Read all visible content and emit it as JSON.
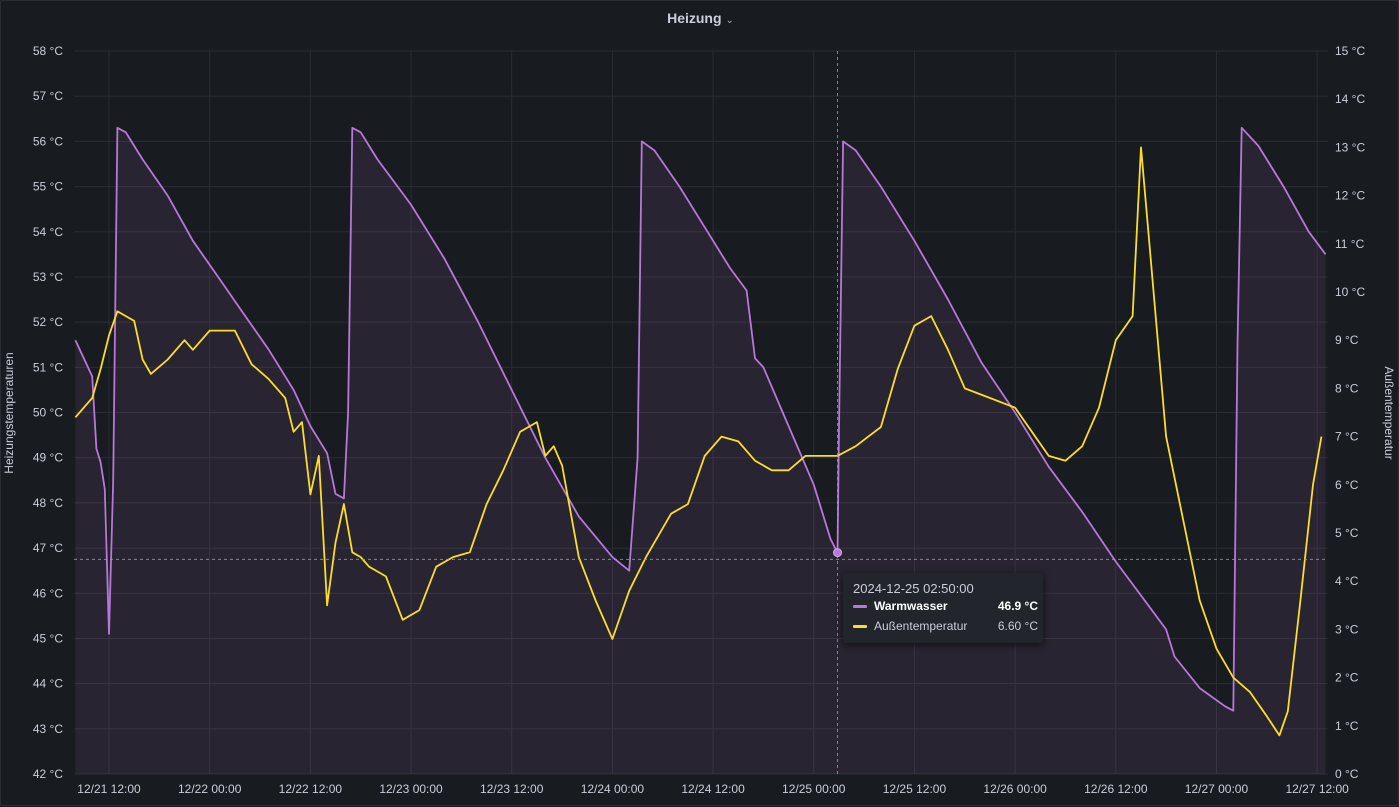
{
  "panel": {
    "title": "Heizung"
  },
  "chart_data": {
    "type": "line",
    "title": "Heizung",
    "x_ticks": [
      "12/21 12:00",
      "12/22 00:00",
      "12/22 12:00",
      "12/23 00:00",
      "12/23 12:00",
      "12/24 00:00",
      "12/24 12:00",
      "12/25 00:00",
      "12/25 12:00",
      "12/26 00:00",
      "12/26 12:00",
      "12/27 00:00",
      "12/27 12:00"
    ],
    "y_left": {
      "label": "Heizungstemperaturen",
      "unit": "°C",
      "range": [
        42,
        58
      ],
      "ticks": [
        "42 °C",
        "43 °C",
        "44 °C",
        "45 °C",
        "46 °C",
        "47 °C",
        "48 °C",
        "49 °C",
        "50 °C",
        "51 °C",
        "52 °C",
        "53 °C",
        "54 °C",
        "55 °C",
        "56 °C",
        "57 °C",
        "58 °C"
      ]
    },
    "y_right": {
      "label": "Außentemperatur",
      "unit": "°C",
      "range": [
        0,
        15
      ],
      "ticks": [
        "0 °C",
        "1 °C",
        "2 °C",
        "3 °C",
        "4 °C",
        "5 °C",
        "6 °C",
        "7 °C",
        "8 °C",
        "9 °C",
        "10 °C",
        "11 °C",
        "12 °C",
        "13 °C",
        "14 °C",
        "15 °C"
      ]
    },
    "series": [
      {
        "name": "Warmwasser",
        "axis": "left",
        "color": "#b877d9",
        "points": [
          [
            "2024-12-21 08:00",
            51.6
          ],
          [
            "2024-12-21 09:00",
            51.2
          ],
          [
            "2024-12-21 10:00",
            50.8
          ],
          [
            "2024-12-21 10:30",
            49.2
          ],
          [
            "2024-12-21 11:00",
            48.9
          ],
          [
            "2024-12-21 11:30",
            48.3
          ],
          [
            "2024-12-21 12:00",
            45.1
          ],
          [
            "2024-12-21 12:30",
            48.5
          ],
          [
            "2024-12-21 13:00",
            56.3
          ],
          [
            "2024-12-21 14:00",
            56.2
          ],
          [
            "2024-12-21 16:00",
            55.6
          ],
          [
            "2024-12-21 19:00",
            54.8
          ],
          [
            "2024-12-21 22:00",
            53.8
          ],
          [
            "2024-12-22 01:00",
            53.0
          ],
          [
            "2024-12-22 04:00",
            52.2
          ],
          [
            "2024-12-22 07:00",
            51.4
          ],
          [
            "2024-12-22 10:00",
            50.5
          ],
          [
            "2024-12-22 12:00",
            49.7
          ],
          [
            "2024-12-22 14:00",
            49.1
          ],
          [
            "2024-12-22 15:00",
            48.2
          ],
          [
            "2024-12-22 16:00",
            48.1
          ],
          [
            "2024-12-22 16:30",
            50.0
          ],
          [
            "2024-12-22 17:00",
            56.3
          ],
          [
            "2024-12-22 18:00",
            56.2
          ],
          [
            "2024-12-22 20:00",
            55.6
          ],
          [
            "2024-12-23 00:00",
            54.6
          ],
          [
            "2024-12-23 04:00",
            53.4
          ],
          [
            "2024-12-23 08:00",
            52.0
          ],
          [
            "2024-12-23 12:00",
            50.5
          ],
          [
            "2024-12-23 16:00",
            49.0
          ],
          [
            "2024-12-23 20:00",
            47.7
          ],
          [
            "2024-12-24 00:00",
            46.8
          ],
          [
            "2024-12-24 02:00",
            46.5
          ],
          [
            "2024-12-24 03:00",
            49.0
          ],
          [
            "2024-12-24 03:30",
            56.0
          ],
          [
            "2024-12-24 05:00",
            55.8
          ],
          [
            "2024-12-24 08:00",
            55.0
          ],
          [
            "2024-12-24 11:00",
            54.1
          ],
          [
            "2024-12-24 14:00",
            53.2
          ],
          [
            "2024-12-24 16:00",
            52.7
          ],
          [
            "2024-12-24 17:00",
            51.2
          ],
          [
            "2024-12-24 18:00",
            51.0
          ],
          [
            "2024-12-24 21:00",
            49.7
          ],
          [
            "2024-12-25 00:00",
            48.4
          ],
          [
            "2024-12-25 02:00",
            47.2
          ],
          [
            "2024-12-25 02:50",
            46.9
          ],
          [
            "2024-12-25 03:00",
            49.5
          ],
          [
            "2024-12-25 03:30",
            56.0
          ],
          [
            "2024-12-25 05:00",
            55.8
          ],
          [
            "2024-12-25 08:00",
            55.0
          ],
          [
            "2024-12-25 12:00",
            53.8
          ],
          [
            "2024-12-25 16:00",
            52.5
          ],
          [
            "2024-12-25 20:00",
            51.1
          ],
          [
            "2024-12-26 00:00",
            50.0
          ],
          [
            "2024-12-26 04:00",
            48.8
          ],
          [
            "2024-12-26 08:00",
            47.8
          ],
          [
            "2024-12-26 12:00",
            46.7
          ],
          [
            "2024-12-26 16:00",
            45.7
          ],
          [
            "2024-12-26 18:00",
            45.2
          ],
          [
            "2024-12-26 19:00",
            44.6
          ],
          [
            "2024-12-26 22:00",
            43.9
          ],
          [
            "2024-12-27 01:00",
            43.5
          ],
          [
            "2024-12-27 02:00",
            43.4
          ],
          [
            "2024-12-27 02:30",
            51.5
          ],
          [
            "2024-12-27 03:00",
            56.3
          ],
          [
            "2024-12-27 05:00",
            55.9
          ],
          [
            "2024-12-27 08:00",
            55.0
          ],
          [
            "2024-12-27 11:00",
            54.0
          ],
          [
            "2024-12-27 13:00",
            53.5
          ]
        ]
      },
      {
        "name": "Außentemperatur",
        "axis": "right",
        "color": "#fade2a",
        "points": [
          [
            "2024-12-21 08:00",
            7.4
          ],
          [
            "2024-12-21 10:00",
            7.8
          ],
          [
            "2024-12-21 11:00",
            8.4
          ],
          [
            "2024-12-21 12:00",
            9.1
          ],
          [
            "2024-12-21 13:00",
            9.6
          ],
          [
            "2024-12-21 15:00",
            9.4
          ],
          [
            "2024-12-21 16:00",
            8.6
          ],
          [
            "2024-12-21 17:00",
            8.3
          ],
          [
            "2024-12-21 19:00",
            8.6
          ],
          [
            "2024-12-21 21:00",
            9.0
          ],
          [
            "2024-12-21 22:00",
            8.8
          ],
          [
            "2024-12-22 00:00",
            9.2
          ],
          [
            "2024-12-22 03:00",
            9.2
          ],
          [
            "2024-12-22 05:00",
            8.5
          ],
          [
            "2024-12-22 07:00",
            8.2
          ],
          [
            "2024-12-22 09:00",
            7.8
          ],
          [
            "2024-12-22 10:00",
            7.1
          ],
          [
            "2024-12-22 11:00",
            7.3
          ],
          [
            "2024-12-22 12:00",
            5.8
          ],
          [
            "2024-12-22 13:00",
            6.6
          ],
          [
            "2024-12-22 14:00",
            3.5
          ],
          [
            "2024-12-22 15:00",
            4.8
          ],
          [
            "2024-12-22 16:00",
            5.6
          ],
          [
            "2024-12-22 17:00",
            4.6
          ],
          [
            "2024-12-22 18:00",
            4.5
          ],
          [
            "2024-12-22 19:00",
            4.3
          ],
          [
            "2024-12-22 21:00",
            4.1
          ],
          [
            "2024-12-22 23:00",
            3.2
          ],
          [
            "2024-12-23 01:00",
            3.4
          ],
          [
            "2024-12-23 03:00",
            4.3
          ],
          [
            "2024-12-23 05:00",
            4.5
          ],
          [
            "2024-12-23 07:00",
            4.6
          ],
          [
            "2024-12-23 09:00",
            5.6
          ],
          [
            "2024-12-23 11:00",
            6.3
          ],
          [
            "2024-12-23 13:00",
            7.1
          ],
          [
            "2024-12-23 15:00",
            7.3
          ],
          [
            "2024-12-23 16:00",
            6.6
          ],
          [
            "2024-12-23 17:00",
            6.8
          ],
          [
            "2024-12-23 18:00",
            6.4
          ],
          [
            "2024-12-23 20:00",
            4.5
          ],
          [
            "2024-12-23 22:00",
            3.6
          ],
          [
            "2024-12-24 00:00",
            2.8
          ],
          [
            "2024-12-24 02:00",
            3.8
          ],
          [
            "2024-12-24 04:00",
            4.5
          ],
          [
            "2024-12-24 07:00",
            5.4
          ],
          [
            "2024-12-24 09:00",
            5.6
          ],
          [
            "2024-12-24 11:00",
            6.6
          ],
          [
            "2024-12-24 13:00",
            7.0
          ],
          [
            "2024-12-24 15:00",
            6.9
          ],
          [
            "2024-12-24 17:00",
            6.5
          ],
          [
            "2024-12-24 19:00",
            6.3
          ],
          [
            "2024-12-24 21:00",
            6.3
          ],
          [
            "2024-12-24 23:00",
            6.6
          ],
          [
            "2024-12-25 02:50",
            6.6
          ],
          [
            "2024-12-25 05:00",
            6.8
          ],
          [
            "2024-12-25 08:00",
            7.2
          ],
          [
            "2024-12-25 10:00",
            8.4
          ],
          [
            "2024-12-25 12:00",
            9.3
          ],
          [
            "2024-12-25 14:00",
            9.5
          ],
          [
            "2024-12-25 16:00",
            8.8
          ],
          [
            "2024-12-25 18:00",
            8.0
          ],
          [
            "2024-12-25 21:00",
            7.8
          ],
          [
            "2024-12-26 00:00",
            7.6
          ],
          [
            "2024-12-26 02:00",
            7.1
          ],
          [
            "2024-12-26 04:00",
            6.6
          ],
          [
            "2024-12-26 06:00",
            6.5
          ],
          [
            "2024-12-26 08:00",
            6.8
          ],
          [
            "2024-12-26 10:00",
            7.6
          ],
          [
            "2024-12-26 12:00",
            9.0
          ],
          [
            "2024-12-26 14:00",
            9.5
          ],
          [
            "2024-12-26 15:00",
            13.0
          ],
          [
            "2024-12-26 16:00",
            11.0
          ],
          [
            "2024-12-26 18:00",
            7.0
          ],
          [
            "2024-12-26 20:00",
            5.3
          ],
          [
            "2024-12-26 22:00",
            3.6
          ],
          [
            "2024-12-27 00:00",
            2.6
          ],
          [
            "2024-12-27 02:00",
            2.0
          ],
          [
            "2024-12-27 04:00",
            1.7
          ],
          [
            "2024-12-27 06:00",
            1.2
          ],
          [
            "2024-12-27 07:30",
            0.8
          ],
          [
            "2024-12-27 08:30",
            1.3
          ],
          [
            "2024-12-27 10:00",
            3.6
          ],
          [
            "2024-12-27 11:30",
            6.0
          ],
          [
            "2024-12-27 12:30",
            7.0
          ]
        ]
      }
    ],
    "hover": {
      "time": "2024-12-25 02:50:00",
      "crosshair_y_left": 46.75
    }
  },
  "tooltip": {
    "timestamp": "2024-12-25 02:50:00",
    "rows": [
      {
        "name": "Warmwasser",
        "value": "46.9 °C",
        "color": "#b877d9"
      },
      {
        "name": "Außentemperatur",
        "value": "6.60 °C",
        "color": "#fade2a"
      }
    ]
  }
}
